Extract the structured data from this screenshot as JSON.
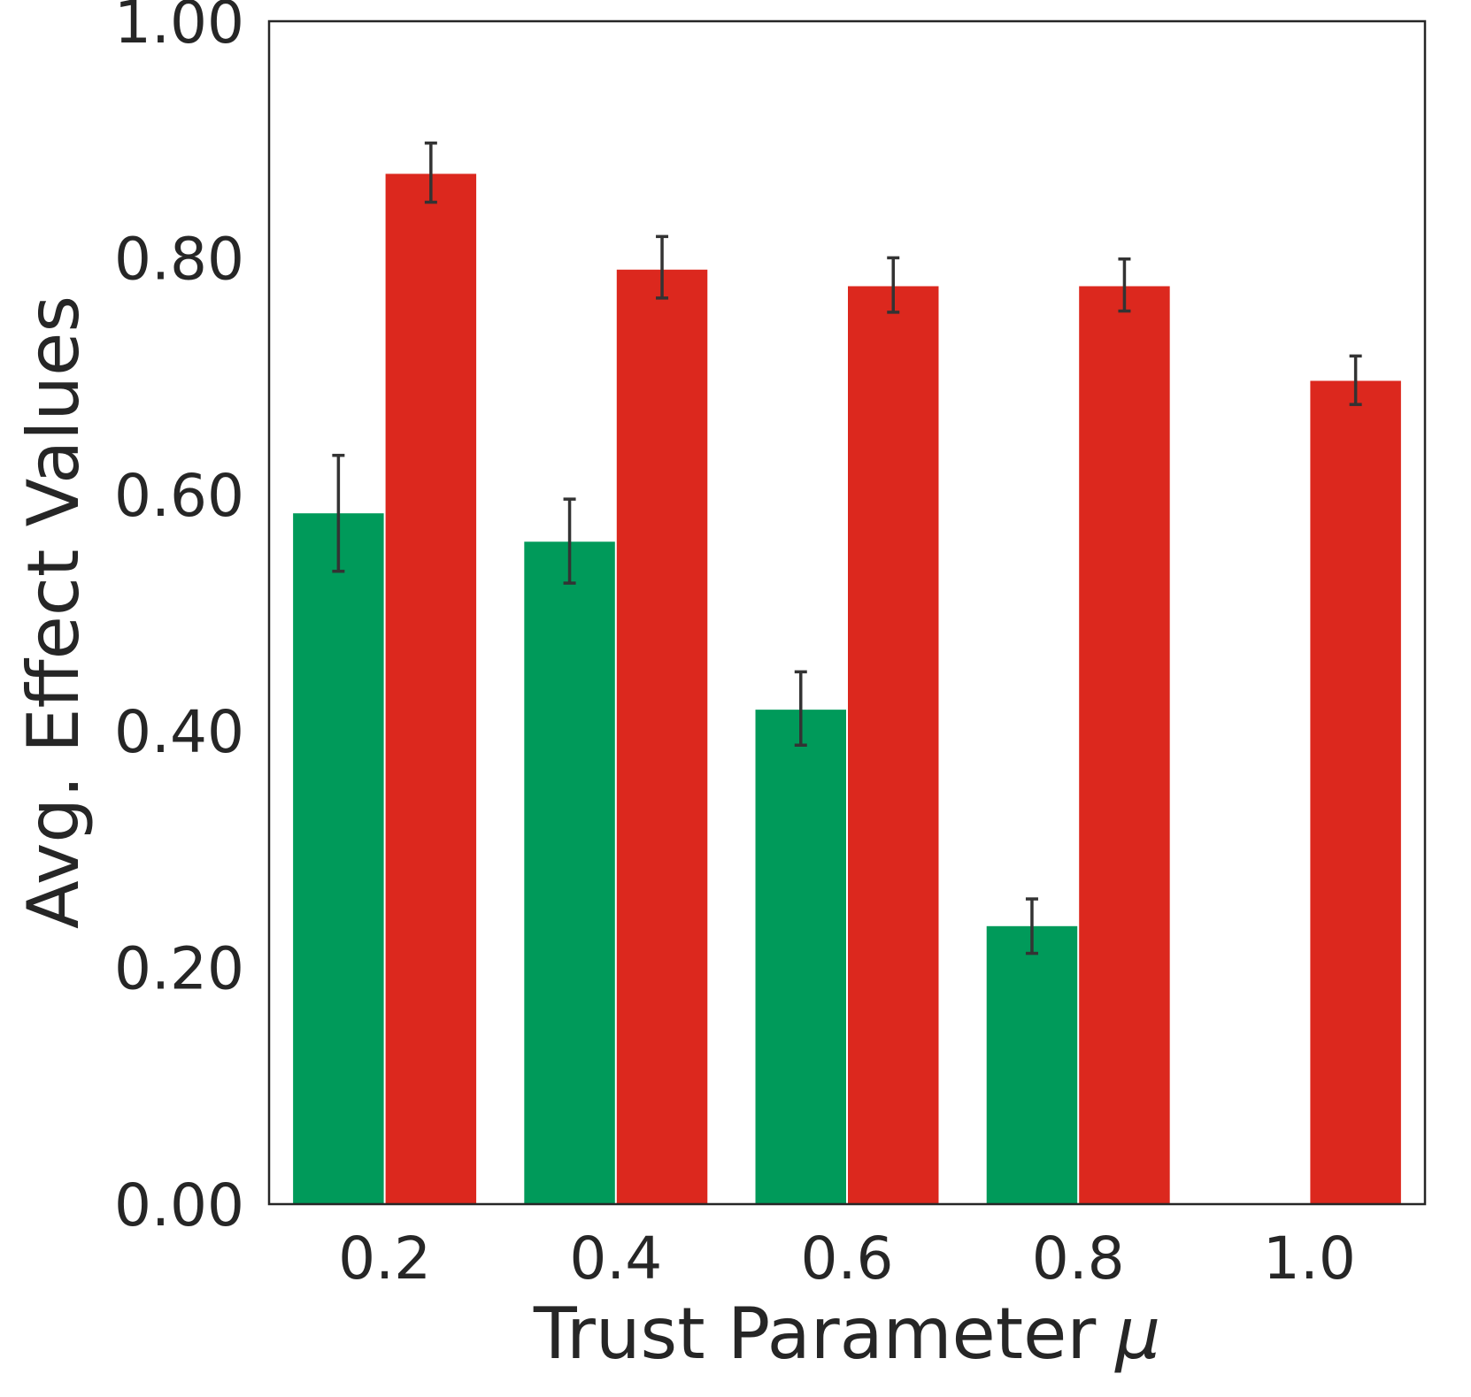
{
  "chart_data": {
    "type": "bar",
    "categories": [
      "0.2",
      "0.4",
      "0.6",
      "0.8",
      "1.0"
    ],
    "series": [
      {
        "color": "#009a5a",
        "values": [
          0.584,
          0.56,
          0.418,
          0.235,
          0.0
        ],
        "errors": [
          [
            0.535,
            0.633
          ],
          [
            0.525,
            0.596
          ],
          [
            0.388,
            0.45
          ],
          [
            0.212,
            0.258
          ],
          null
        ]
      },
      {
        "color": "#dc281e",
        "values": [
          0.871,
          0.79,
          0.776,
          0.776,
          0.696
        ],
        "errors": [
          [
            0.847,
            0.897
          ],
          [
            0.766,
            0.818
          ],
          [
            0.754,
            0.8
          ],
          [
            0.755,
            0.799
          ],
          [
            0.676,
            0.717
          ]
        ]
      }
    ],
    "xlabel": "Trust Parameter",
    "xlabel_symbol": "μ",
    "ylabel": "Avg. Effect Values",
    "yticks": [
      "0.00",
      "0.20",
      "0.40",
      "0.60",
      "0.80",
      "1.00"
    ],
    "ylim": [
      0,
      1.0
    ],
    "grid": false,
    "legend": "none"
  }
}
